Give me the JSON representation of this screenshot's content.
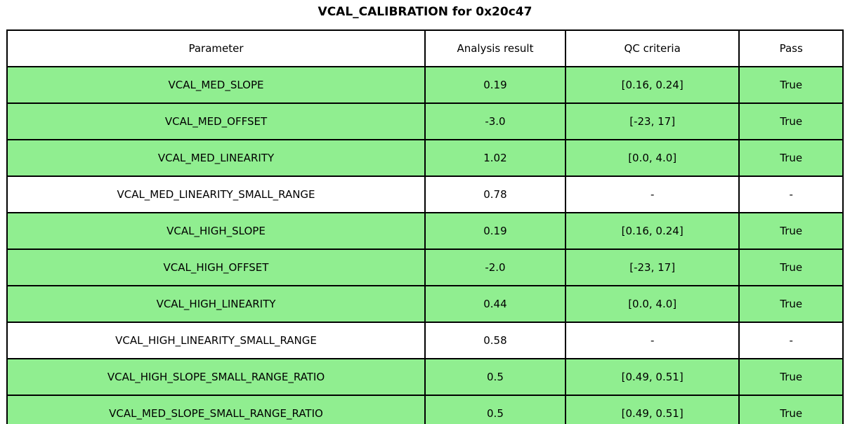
{
  "title": "VCAL_CALIBRATION for 0x20c47",
  "colors": {
    "pass_row_bg": "#90EE90",
    "default_row_bg": "#FFFFFF",
    "border": "#000000",
    "text": "#000000"
  },
  "chart_data": {
    "type": "table",
    "title": "VCAL_CALIBRATION for 0x20c47",
    "columns": [
      "Parameter",
      "Analysis result",
      "QC criteria",
      "Pass"
    ],
    "rows": [
      {
        "parameter": "VCAL_MED_SLOPE",
        "result": "0.19",
        "criteria": "[0.16, 0.24]",
        "pass": "True",
        "highlight": true
      },
      {
        "parameter": "VCAL_MED_OFFSET",
        "result": "-3.0",
        "criteria": "[-23, 17]",
        "pass": "True",
        "highlight": true
      },
      {
        "parameter": "VCAL_MED_LINEARITY",
        "result": "1.02",
        "criteria": "[0.0, 4.0]",
        "pass": "True",
        "highlight": true
      },
      {
        "parameter": "VCAL_MED_LINEARITY_SMALL_RANGE",
        "result": "0.78",
        "criteria": "-",
        "pass": "-",
        "highlight": false
      },
      {
        "parameter": "VCAL_HIGH_SLOPE",
        "result": "0.19",
        "criteria": "[0.16, 0.24]",
        "pass": "True",
        "highlight": true
      },
      {
        "parameter": "VCAL_HIGH_OFFSET",
        "result": "-2.0",
        "criteria": "[-23, 17]",
        "pass": "True",
        "highlight": true
      },
      {
        "parameter": "VCAL_HIGH_LINEARITY",
        "result": "0.44",
        "criteria": "[0.0, 4.0]",
        "pass": "True",
        "highlight": true
      },
      {
        "parameter": "VCAL_HIGH_LINEARITY_SMALL_RANGE",
        "result": "0.58",
        "criteria": "-",
        "pass": "-",
        "highlight": false
      },
      {
        "parameter": "VCAL_HIGH_SLOPE_SMALL_RANGE_RATIO",
        "result": "0.5",
        "criteria": "[0.49, 0.51]",
        "pass": "True",
        "highlight": true
      },
      {
        "parameter": "VCAL_MED_SLOPE_SMALL_RANGE_RATIO",
        "result": "0.5",
        "criteria": "[0.49, 0.51]",
        "pass": "True",
        "highlight": true
      }
    ]
  }
}
